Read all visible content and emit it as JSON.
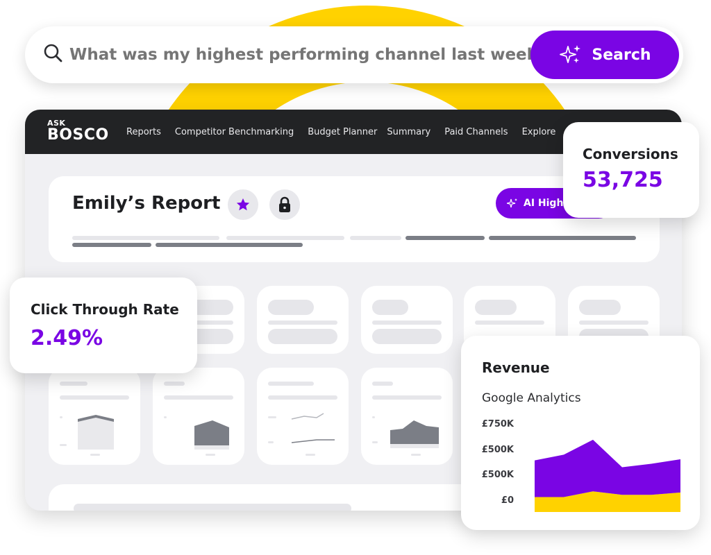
{
  "search": {
    "placeholder": "What was my highest performing channel last week?",
    "button_label": "Search"
  },
  "colors": {
    "accent": "#7a05e4",
    "brand_yellow": "#ffd200",
    "navbar": "#222325"
  },
  "app": {
    "logo": {
      "top": "ASK",
      "main": "BOSCO"
    },
    "nav": [
      "Reports",
      "Competitor Benchmarking",
      "Budget Planner",
      "Summary",
      "Paid Channels",
      "Explore"
    ],
    "report": {
      "title": "Emily’s Report",
      "ai_button_label": "AI Highlights"
    }
  },
  "cards": {
    "conversions": {
      "label": "Conversions",
      "value": "53,725"
    },
    "ctr": {
      "label": "Click Through Rate",
      "value": "2.49%"
    },
    "revenue": {
      "label": "Revenue",
      "subtitle": "Google Analytics"
    }
  },
  "chart_data": {
    "type": "area",
    "title": "Revenue",
    "subtitle": "Google Analytics",
    "y_tick_labels": [
      "£750K",
      "£500K",
      "£500K",
      "£0"
    ],
    "ylim": [
      0,
      750000
    ],
    "x": [
      0,
      1,
      2,
      3,
      4,
      5
    ],
    "series": [
      {
        "name": "",
        "color": "#ffd200",
        "values": [
          130000,
          130000,
          180000,
          150000,
          150000,
          170000
        ]
      },
      {
        "name": "",
        "color": "#7a05e4",
        "values": [
          320000,
          370000,
          450000,
          240000,
          270000,
          290000
        ]
      }
    ],
    "grid": false,
    "legend": "none"
  }
}
